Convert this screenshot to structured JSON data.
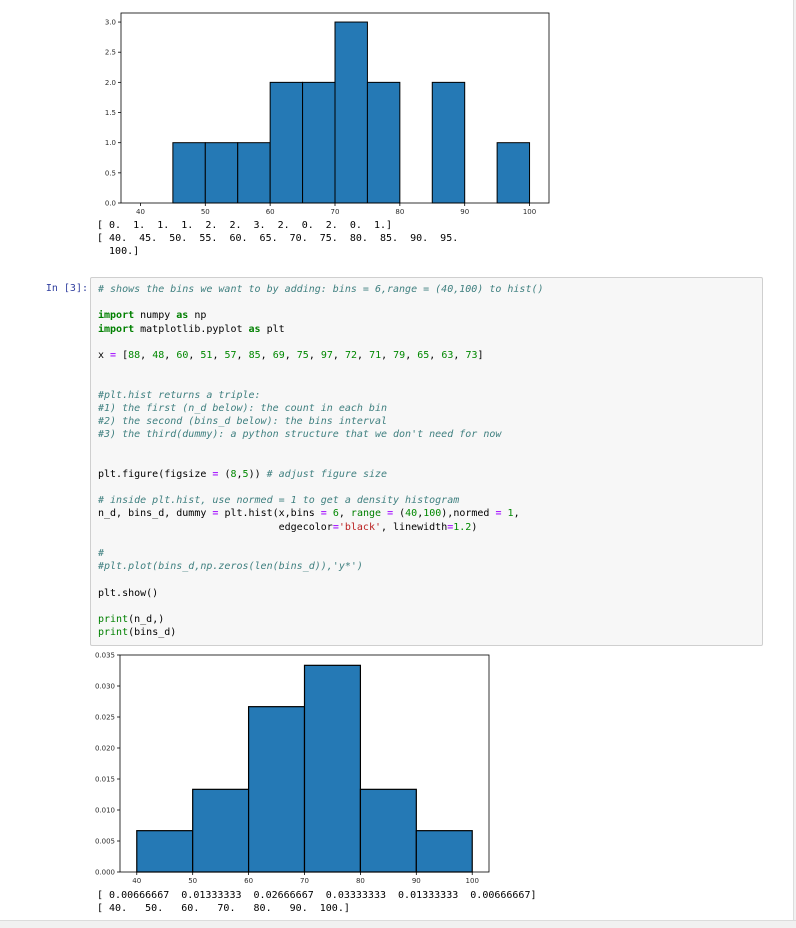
{
  "notebook": {
    "cell": {
      "prompt": "In [3]:",
      "code_lines": [
        "# shows the bins we want to by adding: bins = 6,range = (40,100) to hist()",
        "",
        "import numpy as np",
        "import matplotlib.pyplot as plt",
        "",
        "x = [88, 48, 60, 51, 57, 85, 69, 75, 97, 72, 71, 79, 65, 63, 73]",
        "",
        "",
        "#plt.hist returns a triple:",
        "#1) the first (n_d below): the count in each bin",
        "#2) the second (bins_d below): the bins interval",
        "#3) the third(dummy): a python structure that we don't need for now",
        "",
        "",
        "plt.figure(figsize = (8,5)) # adjust figure size",
        "",
        "# inside plt.hist, use normed = 1 to get a density histogram",
        "n_d, bins_d, dummy = plt.hist(x,bins = 6, range = (40,100),normed = 1,",
        "                              edgecolor='black', linewidth=1.2)",
        "",
        "#",
        "#plt.plot(bins_d,np.zeros(len(bins_d)),'y*')",
        "",
        "plt.show()",
        "",
        "print(n_d,)",
        "print(bins_d)"
      ]
    },
    "outputs": {
      "hist1_counts": [
        "[ 0.  1.  1.  1.  2.  2.  3.  2.  0.  2.  0.  1.]",
        "[ 40.  45.  50.  55.  60.  65.  70.  75.  80.  85.  90.  95.",
        "  100.]"
      ],
      "hist2_density": [
        "[ 0.00666667  0.01333333  0.02666667  0.03333333  0.01333333  0.00666667]",
        "[ 40.   50.   60.   70.   80.   90.  100.]"
      ]
    }
  },
  "syntax_colors": {
    "keyword": "#008000",
    "builtin": "#008000",
    "number": "#008800",
    "string": "#BA2121",
    "comment": "#408080",
    "operator": "#AA22FF",
    "prompt": "#303F9F"
  },
  "chart_data": [
    {
      "type": "bar",
      "subtype": "histogram",
      "title": "",
      "xlabel": "",
      "ylabel": "",
      "grid": false,
      "bin_edges": [
        40,
        45,
        50,
        55,
        60,
        65,
        70,
        75,
        80,
        85,
        90,
        95,
        100
      ],
      "values": [
        0,
        1,
        1,
        1,
        2,
        2,
        3,
        2,
        0,
        2,
        0,
        1
      ],
      "xlim": [
        37,
        103
      ],
      "ylim": [
        0,
        3.15
      ],
      "xticks": [
        40,
        50,
        60,
        70,
        80,
        90,
        100
      ],
      "xtick_labels": [
        "40",
        "50",
        "60",
        "70",
        "80",
        "90",
        "100"
      ],
      "yticks": [
        0,
        0.5,
        1.0,
        1.5,
        2.0,
        2.5,
        3.0
      ],
      "ytick_labels": [
        "0.0",
        "0.5",
        "1.0",
        "1.5",
        "2.0",
        "2.5",
        "3.0"
      ],
      "bar_color": "#2579b5",
      "edge_color": "#000000",
      "edge_width": 1
    },
    {
      "type": "bar",
      "subtype": "histogram",
      "title": "",
      "xlabel": "",
      "ylabel": "",
      "grid": false,
      "bin_edges": [
        40,
        50,
        60,
        70,
        80,
        90,
        100
      ],
      "values": [
        0.00666667,
        0.01333333,
        0.02666667,
        0.03333333,
        0.01333333,
        0.00666667
      ],
      "xlim": [
        37,
        103
      ],
      "ylim": [
        0,
        0.035
      ],
      "xticks": [
        40,
        50,
        60,
        70,
        80,
        90,
        100
      ],
      "xtick_labels": [
        "40",
        "50",
        "60",
        "70",
        "80",
        "90",
        "100"
      ],
      "yticks": [
        0,
        0.005,
        0.01,
        0.015,
        0.02,
        0.025,
        0.03,
        0.035
      ],
      "ytick_labels": [
        "0.000",
        "0.005",
        "0.010",
        "0.015",
        "0.020",
        "0.025",
        "0.030",
        "0.035"
      ],
      "bar_color": "#2579b5",
      "edge_color": "#000000",
      "edge_width": 1.2
    }
  ]
}
